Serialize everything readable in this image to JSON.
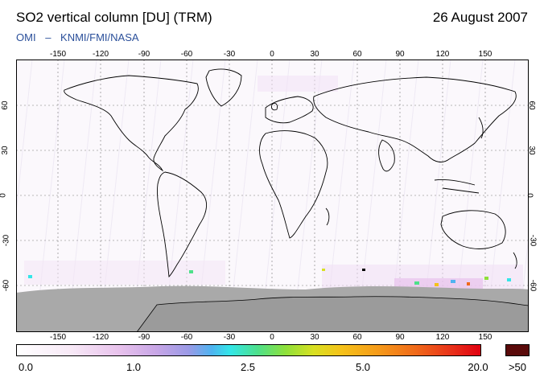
{
  "title": "SO2 vertical column [DU] (TRM)",
  "date": "26 August 2007",
  "credit": {
    "instrument": "OMI",
    "separator": "–",
    "agencies": "KNMI/FMI/NASA"
  },
  "lon_ticks": [
    "-150",
    "-120",
    "-90",
    "-60",
    "-30",
    "0",
    "30",
    "60",
    "90",
    "120",
    "150"
  ],
  "lat_ticks": [
    "60",
    "30",
    "0",
    "-30",
    "-60"
  ],
  "colorbar": {
    "labels": [
      "0.0",
      "1.0",
      "2.5",
      "5.0",
      "20.0"
    ],
    "overflow_label": ">50",
    "overflow_color": "#5a0a0a"
  },
  "colors": {
    "land_outline": "#000000",
    "antarctic_mask": "#a9a9a9",
    "credit_text": "#2a4f9a"
  }
}
